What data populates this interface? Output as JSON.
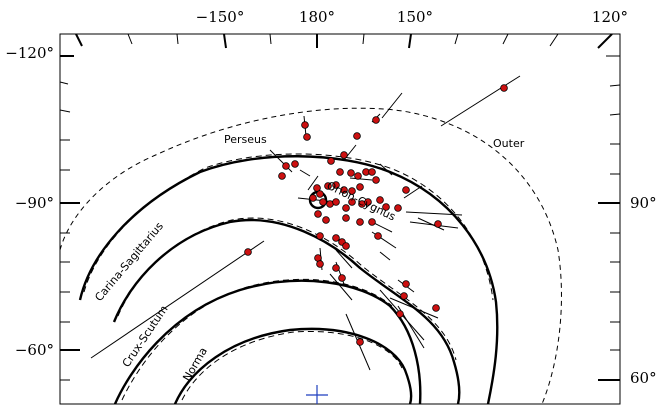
{
  "top_axis": {
    "tick_labels": [
      "−150°",
      "180°",
      "150°",
      "120°"
    ]
  },
  "left_axis": {
    "tick_labels": [
      "−120°",
      "−90°",
      "−60°"
    ]
  },
  "right_axis": {
    "tick_labels": [
      "90°",
      "60°"
    ]
  },
  "arms": {
    "perseus": "Perseus",
    "outer": "Outer",
    "orion_cygnus": "Orion-Cygnus",
    "carina_sagittarius": "Carina-Sagittarius",
    "crux_scutum": "Crux-Scutum",
    "norma": "Norma"
  },
  "colors": {
    "points": "#cc1111",
    "marker": "#1f3fbf",
    "arms": "#000000"
  },
  "icons": {
    "galactic_center": "plus-icon",
    "sun": "circle-icon"
  },
  "points_count_shown": 56
}
